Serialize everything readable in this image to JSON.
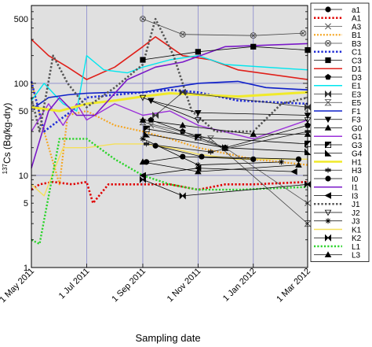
{
  "chart_data": {
    "type": "line",
    "xlabel": "Sampling date",
    "ylabel": "137Cs (Bq/kg-dry)",
    "ylabel_parts": {
      "mass_number": "137",
      "rest": "Cs (Bq/kg-dry)"
    },
    "y_scale": "log",
    "ylim": [
      1,
      700
    ],
    "xlim": [
      "2011-05-01",
      "2012-03-01"
    ],
    "grid": true,
    "background_color": "#e0e0e0",
    "legend_position": "right",
    "x_ticks": [
      {
        "date": "2011-05-01",
        "label": "1 May 2011"
      },
      {
        "date": "2011-07-01",
        "label": "1 Jul 2011"
      },
      {
        "date": "2011-09-01",
        "label": "1 Sep 2011"
      },
      {
        "date": "2011-11-01",
        "label": "1 Nov 2011"
      },
      {
        "date": "2012-01-01",
        "label": "1 Jan 2012"
      },
      {
        "date": "2012-03-01",
        "label": "1 Mar 2012"
      }
    ],
    "y_ticks": [
      {
        "value": 1,
        "label": "1"
      },
      {
        "value": 5,
        "label": "5"
      },
      {
        "value": 10,
        "label": "10"
      },
      {
        "value": 50,
        "label": "50"
      },
      {
        "value": 100,
        "label": "100"
      },
      {
        "value": 500,
        "label": "500"
      }
    ],
    "series": [
      {
        "name": "a1",
        "color": "#000000",
        "dash": "solid",
        "width": 0.8,
        "marker": "circle",
        "points": [
          [
            "2011-09-15",
            21
          ],
          [
            "2011-11-05",
            16
          ],
          [
            "2012-02-20",
            15
          ]
        ]
      },
      {
        "name": "A1",
        "color": "#e00000",
        "dash": "dot",
        "width": 2.6,
        "marker": "none",
        "points": [
          [
            "2011-05-01",
            7
          ],
          [
            "2011-05-10",
            8
          ],
          [
            "2011-05-25",
            8.5
          ],
          [
            "2011-06-15",
            8
          ],
          [
            "2011-07-01",
            8.5
          ],
          [
            "2011-07-08",
            5
          ],
          [
            "2011-07-25",
            8
          ],
          [
            "2011-09-01",
            8
          ],
          [
            "2011-10-01",
            8
          ],
          [
            "2011-11-01",
            7
          ],
          [
            "2011-12-01",
            8
          ],
          [
            "2012-01-01",
            8
          ],
          [
            "2012-03-01",
            8.5
          ]
        ]
      },
      {
        "name": "A3",
        "color": "#555555",
        "dash": "solid",
        "width": 0.8,
        "marker": "x",
        "points": [
          [
            "2011-09-10",
            35
          ],
          [
            "2011-12-01",
            20
          ],
          [
            "2012-03-01",
            5
          ]
        ]
      },
      {
        "name": "B1",
        "color": "#f5a623",
        "dash": "dot",
        "width": 2.2,
        "marker": "none",
        "points": [
          [
            "2011-05-01",
            105
          ],
          [
            "2011-05-15",
            30
          ],
          [
            "2011-06-01",
            8
          ],
          [
            "2011-06-10",
            45
          ],
          [
            "2011-07-01",
            50
          ],
          [
            "2011-08-01",
            35
          ],
          [
            "2011-09-01",
            30
          ],
          [
            "2011-10-01",
            25
          ],
          [
            "2011-11-01",
            20
          ],
          [
            "2012-01-01",
            15
          ],
          [
            "2012-03-01",
            13
          ]
        ]
      },
      {
        "name": "B3",
        "color": "#444444",
        "dash": "solid",
        "width": 0.8,
        "marker": "circle-cross",
        "points": [
          [
            "2011-09-01",
            500
          ],
          [
            "2011-10-15",
            340
          ],
          [
            "2012-01-01",
            330
          ],
          [
            "2012-02-25",
            350
          ]
        ]
      },
      {
        "name": "C1",
        "color": "#1f2bd6",
        "dash": "dot",
        "width": 2.6,
        "marker": "none",
        "points": [
          [
            "2011-05-01",
            105
          ],
          [
            "2011-05-15",
            30
          ],
          [
            "2011-06-01",
            40
          ],
          [
            "2011-06-20",
            55
          ],
          [
            "2011-07-01",
            70
          ],
          [
            "2011-08-01",
            75
          ],
          [
            "2011-09-01",
            80
          ],
          [
            "2011-10-01",
            85
          ],
          [
            "2011-11-01",
            80
          ],
          [
            "2011-12-15",
            65
          ],
          [
            "2012-03-01",
            60
          ]
        ]
      },
      {
        "name": "C3",
        "color": "#000000",
        "dash": "solid",
        "width": 0.8,
        "marker": "square",
        "points": [
          [
            "2011-09-01",
            180
          ],
          [
            "2011-11-01",
            220
          ],
          [
            "2012-01-01",
            250
          ],
          [
            "2012-03-01",
            230
          ]
        ]
      },
      {
        "name": "D1",
        "color": "#e0201a",
        "dash": "solid",
        "width": 1.6,
        "marker": "none",
        "points": [
          [
            "2011-05-01",
            300
          ],
          [
            "2011-05-20",
            200
          ],
          [
            "2011-06-10",
            150
          ],
          [
            "2011-07-01",
            110
          ],
          [
            "2011-08-01",
            150
          ],
          [
            "2011-09-01",
            250
          ],
          [
            "2011-09-15",
            320
          ],
          [
            "2011-10-15",
            200
          ],
          [
            "2011-11-15",
            180
          ],
          [
            "2011-12-15",
            140
          ],
          [
            "2012-03-01",
            110
          ]
        ]
      },
      {
        "name": "D3",
        "color": "#000000",
        "dash": "solid",
        "width": 0.8,
        "marker": "pentagon",
        "points": [
          [
            "2011-09-10",
            40
          ],
          [
            "2011-10-15",
            30
          ],
          [
            "2011-12-01",
            20
          ],
          [
            "2012-03-01",
            35
          ]
        ]
      },
      {
        "name": "E1",
        "color": "#00e6ee",
        "dash": "solid",
        "width": 1.4,
        "marker": "none",
        "points": [
          [
            "2011-05-01",
            65
          ],
          [
            "2011-05-15",
            100
          ],
          [
            "2011-06-05",
            60
          ],
          [
            "2011-06-20",
            50
          ],
          [
            "2011-07-01",
            200
          ],
          [
            "2011-07-20",
            140
          ],
          [
            "2011-08-15",
            130
          ],
          [
            "2011-09-01",
            150
          ],
          [
            "2011-10-01",
            180
          ],
          [
            "2011-11-01",
            200
          ],
          [
            "2011-12-01",
            160
          ],
          [
            "2012-03-01",
            140
          ]
        ]
      },
      {
        "name": "E3",
        "color": "#333333",
        "dash": "solid",
        "width": 0.8,
        "marker": "bowtie",
        "points": [
          [
            "2011-09-15",
            45
          ],
          [
            "2011-10-15",
            80
          ],
          [
            "2012-03-01",
            55
          ]
        ]
      },
      {
        "name": "E5",
        "color": "#444444",
        "dash": "solid",
        "width": 0.8,
        "marker": "hourglass",
        "points": [
          [
            "2011-09-01",
            38
          ],
          [
            "2011-11-15",
            25
          ],
          [
            "2012-03-01",
            3
          ]
        ]
      },
      {
        "name": "F1",
        "color": "#0f20c8",
        "dash": "solid",
        "width": 1.6,
        "marker": "none",
        "points": [
          [
            "2011-05-01",
            52
          ],
          [
            "2011-05-20",
            70
          ],
          [
            "2011-06-10",
            75
          ],
          [
            "2011-07-01",
            78
          ],
          [
            "2011-08-01",
            80
          ],
          [
            "2011-09-01",
            80
          ],
          [
            "2011-10-01",
            90
          ],
          [
            "2011-11-01",
            100
          ],
          [
            "2011-12-15",
            105
          ],
          [
            "2012-01-15",
            90
          ],
          [
            "2012-03-01",
            85
          ]
        ]
      },
      {
        "name": "F3",
        "color": "#000000",
        "dash": "solid",
        "width": 0.8,
        "marker": "triangle-down",
        "points": [
          [
            "2011-09-10",
            65
          ],
          [
            "2011-11-01",
            48
          ],
          [
            "2012-03-01",
            45
          ]
        ]
      },
      {
        "name": "G0",
        "color": "#000000",
        "dash": "solid",
        "width": 0.8,
        "marker": "triangle-up",
        "points": [
          [
            "2011-09-01",
            40
          ],
          [
            "2011-10-15",
            35
          ],
          [
            "2012-01-01",
            28
          ],
          [
            "2012-03-01",
            28
          ]
        ]
      },
      {
        "name": "G1",
        "color": "#9b30d9",
        "dash": "solid",
        "width": 1.4,
        "marker": "none",
        "points": [
          [
            "2011-05-01",
            30
          ],
          [
            "2011-05-20",
            60
          ],
          [
            "2011-06-05",
            35
          ],
          [
            "2011-06-20",
            60
          ],
          [
            "2011-07-01",
            40
          ],
          [
            "2011-08-01",
            60
          ],
          [
            "2011-09-01",
            45
          ],
          [
            "2011-10-01",
            50
          ],
          [
            "2011-11-01",
            35
          ],
          [
            "2012-01-01",
            25
          ],
          [
            "2012-03-01",
            40
          ]
        ]
      },
      {
        "name": "G3",
        "color": "#000000",
        "dash": "solid",
        "width": 0.8,
        "marker": "half-square",
        "points": [
          [
            "2011-09-05",
            32
          ],
          [
            "2011-11-01",
            26
          ],
          [
            "2012-03-01",
            22
          ]
        ]
      },
      {
        "name": "G4",
        "color": "#000000",
        "dash": "solid",
        "width": 0.8,
        "marker": "half-triangle",
        "points": [
          [
            "2011-09-05",
            28
          ],
          [
            "2011-12-01",
            20
          ],
          [
            "2012-03-01",
            18
          ]
        ]
      },
      {
        "name": "H1",
        "color": "#f0ea2a",
        "dash": "solid",
        "width": 3,
        "marker": "none",
        "points": [
          [
            "2011-05-01",
            55
          ],
          [
            "2011-06-01",
            50
          ],
          [
            "2011-07-01",
            60
          ],
          [
            "2011-08-01",
            65
          ],
          [
            "2011-09-01",
            72
          ],
          [
            "2011-10-01",
            78
          ],
          [
            "2011-11-01",
            75
          ],
          [
            "2011-12-15",
            72
          ],
          [
            "2012-03-01",
            80
          ]
        ]
      },
      {
        "name": "H3",
        "color": "#222222",
        "dash": "solid",
        "width": 0.8,
        "marker": "bar-h",
        "points": [
          [
            "2011-09-05",
            22
          ],
          [
            "2011-11-15",
            18
          ],
          [
            "2012-03-01",
            30
          ]
        ]
      },
      {
        "name": "I0",
        "color": "#000000",
        "dash": "solid",
        "width": 0.8,
        "marker": "circle",
        "points": [
          [
            "2011-09-05",
            14
          ],
          [
            "2011-10-15",
            16
          ],
          [
            "2012-01-01",
            15
          ]
        ]
      },
      {
        "name": "I1",
        "color": "#7a18c8",
        "dash": "solid",
        "width": 1.6,
        "marker": "none",
        "points": [
          [
            "2011-05-01",
            12
          ],
          [
            "2011-05-20",
            50
          ],
          [
            "2011-06-01",
            70
          ],
          [
            "2011-06-20",
            45
          ],
          [
            "2011-07-10",
            45
          ],
          [
            "2011-08-15",
            110
          ],
          [
            "2011-09-15",
            150
          ],
          [
            "2011-10-15",
            170
          ],
          [
            "2011-12-01",
            250
          ],
          [
            "2012-03-01",
            270
          ]
        ]
      },
      {
        "name": "I3",
        "color": "#000000",
        "dash": "solid",
        "width": 0.8,
        "marker": "triangle-left",
        "points": [
          [
            "2011-09-01",
            10
          ],
          [
            "2011-11-01",
            12
          ],
          [
            "2012-02-15",
            11
          ]
        ]
      },
      {
        "name": "J1",
        "color": "#555555",
        "dash": "dot",
        "width": 2.6,
        "marker": "none",
        "points": [
          [
            "2011-05-01",
            70
          ],
          [
            "2011-05-10",
            30
          ],
          [
            "2011-05-25",
            200
          ],
          [
            "2011-06-10",
            100
          ],
          [
            "2011-07-01",
            55
          ],
          [
            "2011-08-01",
            90
          ],
          [
            "2011-09-01",
            160
          ],
          [
            "2011-09-15",
            500
          ],
          [
            "2011-10-05",
            200
          ],
          [
            "2011-10-25",
            50
          ],
          [
            "2011-11-20",
            30
          ],
          [
            "2012-01-01",
            30
          ],
          [
            "2012-02-01",
            60
          ],
          [
            "2012-03-01",
            70
          ]
        ]
      },
      {
        "name": "J2",
        "color": "#000000",
        "dash": "solid",
        "width": 0.8,
        "marker": "triangle-down-open",
        "points": [
          [
            "2011-09-01",
            70
          ],
          [
            "2011-11-01",
            40
          ],
          [
            "2012-03-01",
            40
          ]
        ]
      },
      {
        "name": "J3",
        "color": "#000000",
        "dash": "solid",
        "width": 0.8,
        "marker": "star",
        "points": [
          [
            "2011-09-01",
            25
          ],
          [
            "2011-11-01",
            13
          ],
          [
            "2012-02-01",
            14
          ]
        ]
      },
      {
        "name": "K1",
        "color": "#f5e05a",
        "dash": "solid",
        "width": 1.4,
        "marker": "none",
        "points": [
          [
            "2011-05-01",
            8
          ],
          [
            "2011-05-15",
            6
          ],
          [
            "2011-06-05",
            20
          ],
          [
            "2011-07-01",
            20
          ],
          [
            "2011-08-01",
            22
          ],
          [
            "2011-09-01",
            22
          ],
          [
            "2011-10-01",
            20
          ],
          [
            "2011-11-01",
            17
          ],
          [
            "2011-12-15",
            15
          ],
          [
            "2012-03-01",
            15
          ]
        ]
      },
      {
        "name": "K2",
        "color": "#000000",
        "dash": "solid",
        "width": 0.8,
        "marker": "bowtie",
        "points": [
          [
            "2011-09-01",
            9
          ],
          [
            "2011-10-15",
            6
          ],
          [
            "2012-03-01",
            8
          ]
        ]
      },
      {
        "name": "L1",
        "color": "#2ad42a",
        "dash": "dot",
        "width": 2.4,
        "marker": "none",
        "points": [
          [
            "2011-05-01",
            2
          ],
          [
            "2011-05-10",
            1.8
          ],
          [
            "2011-06-01",
            25
          ],
          [
            "2011-07-01",
            25
          ],
          [
            "2011-08-01",
            15
          ],
          [
            "2011-09-01",
            10
          ],
          [
            "2011-10-01",
            8
          ],
          [
            "2011-11-01",
            7
          ],
          [
            "2011-12-15",
            7
          ],
          [
            "2012-03-01",
            7.5
          ]
        ]
      },
      {
        "name": "L3",
        "color": "#000000",
        "dash": "solid",
        "width": 0.8,
        "marker": "triangle-up",
        "points": [
          [
            "2011-09-01",
            14
          ],
          [
            "2011-11-01",
            11
          ],
          [
            "2012-02-20",
            13
          ]
        ]
      }
    ]
  }
}
